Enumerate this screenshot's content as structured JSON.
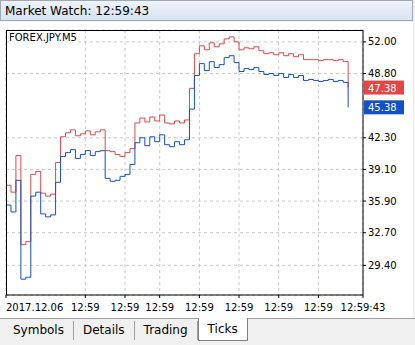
{
  "window": {
    "title": "Market Watch: 12:59:43",
    "tabs": [
      "Symbols",
      "Details",
      "Trading",
      "Ticks"
    ],
    "active_tab": "Ticks"
  },
  "chart_data": {
    "type": "line",
    "title": "FOREX.JPY.M5",
    "x": [
      0,
      1,
      2,
      3,
      4,
      5,
      6,
      7,
      8,
      9,
      10,
      11,
      12,
      13,
      14,
      15,
      16,
      17,
      18,
      19,
      20,
      21,
      22,
      23,
      24,
      25,
      26,
      27,
      28,
      29,
      30,
      31,
      32,
      33,
      34,
      35,
      36,
      37,
      38,
      39,
      40,
      41,
      42,
      43,
      44,
      45,
      46,
      47,
      48,
      49,
      50,
      51,
      52,
      53,
      54,
      55,
      56,
      57,
      58,
      59,
      60,
      61,
      62,
      63,
      64,
      65,
      66,
      67,
      68,
      69
    ],
    "series": [
      {
        "color": "#e04848",
        "line_style": "step",
        "values": [
          37.5,
          36.8,
          40.5,
          31.5,
          31.8,
          38.6,
          38.9,
          36.7,
          36.4,
          36.6,
          39.8,
          42.4,
          42.8,
          43.1,
          42.5,
          42.7,
          43.0,
          42.6,
          42.9,
          43.1,
          41.0,
          40.9,
          40.6,
          40.4,
          40.8,
          41.2,
          43.8,
          44.3,
          43.9,
          44.4,
          44.0,
          44.6,
          43.8,
          43.7,
          44.0,
          43.8,
          44.1,
          47.3,
          50.8,
          51.6,
          51.2,
          51.9,
          51.5,
          51.8,
          52.3,
          52.5,
          52.0,
          51.2,
          51.4,
          51.3,
          51.5,
          51.1,
          50.8,
          50.9,
          50.7,
          50.9,
          50.6,
          50.8,
          50.5,
          50.7,
          50.2,
          50.2,
          50.2,
          50.1,
          50.2,
          50.2,
          50.1,
          50.2,
          50.0,
          47.38
        ]
      },
      {
        "color": "#1450c8",
        "line_style": "step",
        "values": [
          35.5,
          34.8,
          38.0,
          28.0,
          28.2,
          36.4,
          36.8,
          34.6,
          34.3,
          34.5,
          37.8,
          40.4,
          40.8,
          41.1,
          40.2,
          40.6,
          41.0,
          40.5,
          40.9,
          41.0,
          38.2,
          37.9,
          38.0,
          38.4,
          38.6,
          39.6,
          41.8,
          42.3,
          41.5,
          42.4,
          41.9,
          42.6,
          41.6,
          41.4,
          41.9,
          41.6,
          42.1,
          45.2,
          48.6,
          49.8,
          49.1,
          50.0,
          49.4,
          49.7,
          50.4,
          50.6,
          49.9,
          49.0,
          49.3,
          49.2,
          49.4,
          49.0,
          48.7,
          48.8,
          48.6,
          48.8,
          48.4,
          48.7,
          48.4,
          48.6,
          48.1,
          48.2,
          48.1,
          48.0,
          48.1,
          48.2,
          48.0,
          48.1,
          47.9,
          45.38
        ]
      }
    ],
    "xlim": [
      0,
      72
    ],
    "xticks": [
      {
        "value": 0,
        "label": "2017.12.06"
      },
      {
        "value": 16,
        "label": "12:59"
      },
      {
        "value": 24,
        "label": "12:59"
      },
      {
        "value": 31,
        "label": "12:59"
      },
      {
        "value": 39,
        "label": "12:59"
      },
      {
        "value": 47,
        "label": "12:59"
      },
      {
        "value": 55,
        "label": "12:59"
      },
      {
        "value": 63,
        "label": "12:59"
      },
      {
        "value": 72,
        "label": "12:59:43"
      }
    ],
    "ylim": [
      26.4,
      53.2
    ],
    "yticks": [
      {
        "value": 29.4,
        "label": "29.40"
      },
      {
        "value": 32.7,
        "label": "32.70"
      },
      {
        "value": 35.9,
        "label": "35.90"
      },
      {
        "value": 39.1,
        "label": "39.10"
      },
      {
        "value": 42.3,
        "label": "42.30"
      },
      {
        "value": 48.8,
        "label": "48.80"
      },
      {
        "value": 52,
        "label": "52.00"
      }
    ],
    "grid": true
  }
}
